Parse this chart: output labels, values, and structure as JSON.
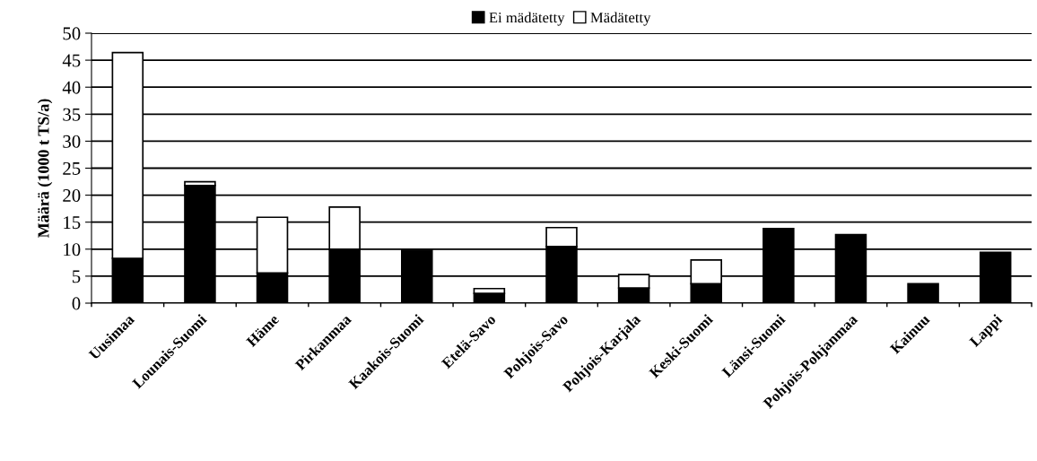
{
  "chart_data": {
    "type": "bar",
    "stacked": true,
    "ylabel": "Määrä (1000 t TS/a)",
    "categories": [
      "Uusimaa",
      "Lounais-Suomi",
      "Häme",
      "Pirkanmaa",
      "Kaakois-Suomi",
      "Etelä-Savo",
      "Pohjois-Savo",
      "Pohjois-Karjala",
      "Keski-Suomi",
      "Länsi-Suomi",
      "Pohjois-Pohjanmaa",
      "Kainuu",
      "Lappi"
    ],
    "series": [
      {
        "name": "Ei mädätetty",
        "color": "#000000",
        "values": [
          8.3,
          21.8,
          5.6,
          10,
          9.8,
          1.8,
          10.5,
          2.8,
          3.6,
          13.8,
          12.7,
          3.6,
          9.4
        ]
      },
      {
        "name": "Mädätetty",
        "color": "#ffffff",
        "values": [
          38.1,
          0.7,
          10.3,
          7.8,
          null,
          0.9,
          3.5,
          2.5,
          4.4,
          null,
          null,
          null,
          null
        ]
      }
    ],
    "ylim": [
      0,
      50
    ],
    "yticks": [
      0,
      5,
      10,
      15,
      20,
      25,
      30,
      35,
      40,
      45,
      50
    ],
    "grid": "y",
    "legend": "top"
  }
}
